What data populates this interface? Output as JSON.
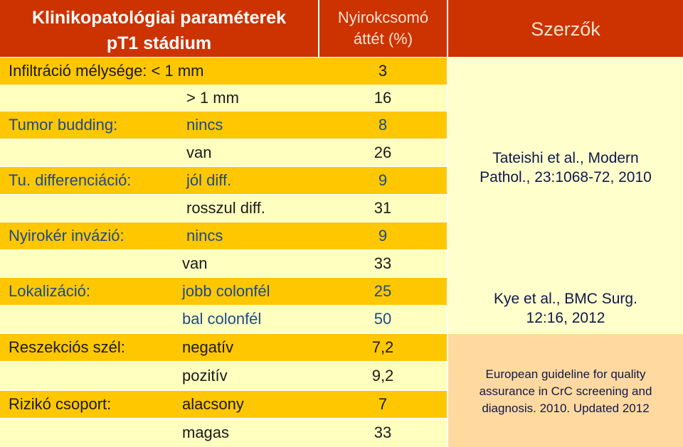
{
  "header": {
    "left_line1": "Klinikopatológiai paraméterek",
    "left_line2": "pT1 stádium",
    "mid_line1": "Nyirokcsomó",
    "mid_line2": "áttét (%)",
    "right": "Szerzők"
  },
  "rows": [
    {
      "label": "Infiltráció mélysége: < 1 mm",
      "sub": "",
      "value": "3"
    },
    {
      "label": "",
      "sub": "> 1 mm",
      "value": "16"
    },
    {
      "label": "Tumor budding:",
      "sub": "nincs",
      "value": "8"
    },
    {
      "label": "",
      "sub": "van",
      "value": "26"
    },
    {
      "label": "Tu. differenciáció:",
      "sub": "jól diff.",
      "value": "9"
    },
    {
      "label": "",
      "sub": "rosszul diff.",
      "value": "31"
    },
    {
      "label": "Nyirokér invázió:",
      "sub": "nincs",
      "value": "9"
    },
    {
      "label": "",
      "sub": "van",
      "value": "33"
    },
    {
      "label": "Lokalizáció:",
      "sub": "jobb colonfél",
      "value": "25"
    },
    {
      "label": "",
      "sub": "bal colonfél",
      "value": "50"
    },
    {
      "label": "Reszekciós szél:",
      "sub": "negatív",
      "value": "7,2"
    },
    {
      "label": "",
      "sub": "pozitív",
      "value": "9,2"
    },
    {
      "label": "Rizikó csoport:",
      "sub": "alacsony",
      "value": "7"
    },
    {
      "label": "",
      "sub": "magas",
      "value": "33"
    }
  ],
  "references": {
    "ref1_line1": "Tateishi et al., Modern",
    "ref1_line2": "Pathol., 23:1068-72, 2010",
    "ref2_line1": "Kye et al., BMC Surg.",
    "ref2_line2": "12:16, 2012",
    "ref3_line1": "European guideline for quality",
    "ref3_line2": "assurance in CrC screening and",
    "ref3_line3": "diagnosis. 2010. Updated 2012"
  },
  "colors": {
    "header": "#cc3300",
    "row_dark": "#ffc700",
    "row_light": "#ffffc0",
    "ref_panel": "#ffffcc",
    "ref_panel_bottom": "#ffd9a0"
  }
}
